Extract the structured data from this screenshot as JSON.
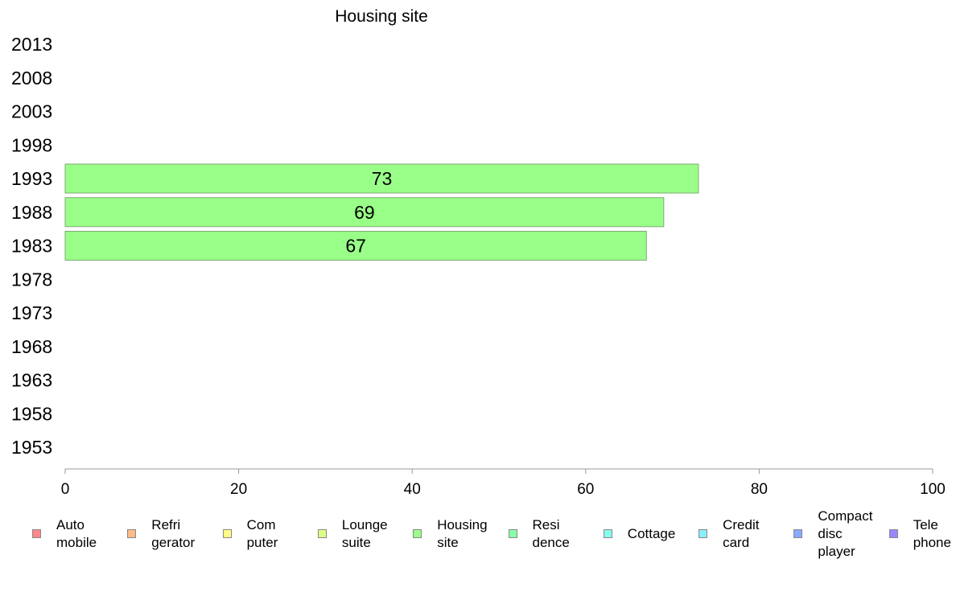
{
  "chart_data": {
    "type": "bar",
    "orientation": "horizontal",
    "title": "Housing site",
    "categories": [
      "2013",
      "2008",
      "2003",
      "1998",
      "1993",
      "1988",
      "1983",
      "1978",
      "1973",
      "1968",
      "1963",
      "1958",
      "1953"
    ],
    "series": [
      {
        "name": "Housing site",
        "color": "#99ff88",
        "values": [
          null,
          null,
          null,
          null,
          73,
          69,
          67,
          null,
          null,
          null,
          null,
          null,
          null
        ]
      }
    ],
    "data_labels": [
      "",
      "",
      "",
      "",
      "73",
      "69",
      "67",
      "",
      "",
      "",
      "",
      "",
      ""
    ],
    "xlim": [
      0,
      100
    ],
    "xticks": [
      "0",
      "20",
      "40",
      "60",
      "80",
      "100"
    ],
    "grid": false,
    "legend_position": "bottom"
  },
  "legend": {
    "items": [
      {
        "label": "Auto mobile",
        "lines": [
          "Auto",
          "mobile"
        ],
        "color": "#ff8888"
      },
      {
        "label": "Refri gerator",
        "lines": [
          "Refri",
          "gerator"
        ],
        "color": "#ffbb88"
      },
      {
        "label": "Com puter",
        "lines": [
          "Com",
          "puter"
        ],
        "color": "#ffff88"
      },
      {
        "label": "Lounge suite",
        "lines": [
          "Lounge",
          "suite"
        ],
        "color": "#ddff88"
      },
      {
        "label": "Housing site",
        "lines": [
          "Housing",
          "site"
        ],
        "color": "#99ff88"
      },
      {
        "label": "Resi dence",
        "lines": [
          "Resi",
          "dence"
        ],
        "color": "#88ffaa"
      },
      {
        "label": "Cottage",
        "lines": [
          "Cottage"
        ],
        "color": "#88ffee"
      },
      {
        "label": "Credit card",
        "lines": [
          "Credit",
          "card"
        ],
        "color": "#88eeff"
      },
      {
        "label": "Compact disc player",
        "lines": [
          "Compact",
          "disc",
          "player"
        ],
        "color": "#88aaff"
      },
      {
        "label": "Tele phone",
        "lines": [
          "Tele",
          "phone"
        ],
        "color": "#9988ff"
      }
    ]
  }
}
